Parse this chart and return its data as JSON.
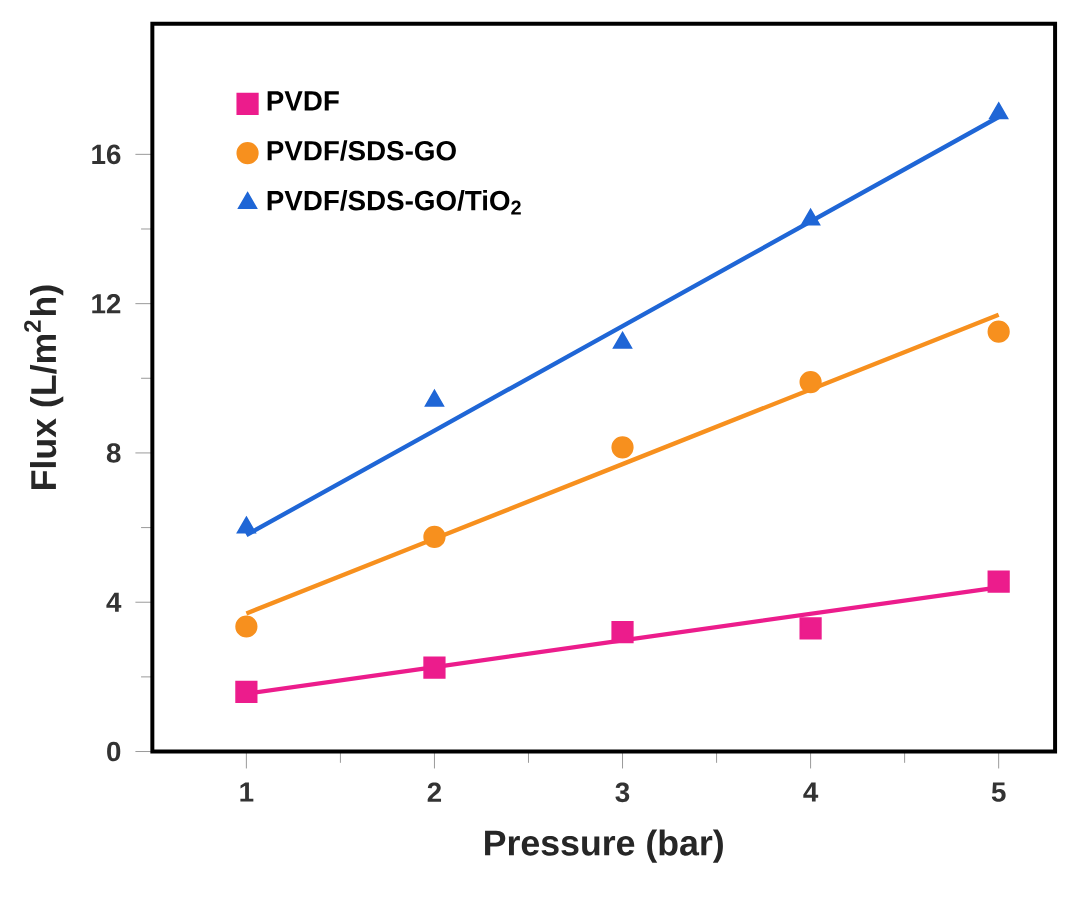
{
  "chart_data": {
    "type": "scatter",
    "xlabel": "Pressure (bar)",
    "ylabel": "Flux (L/m$^{2}$h)",
    "x": [
      1,
      2,
      3,
      4,
      5
    ],
    "xlim": [
      0.5,
      5.3
    ],
    "ylim": [
      0,
      19.5
    ],
    "xticks": [
      1,
      2,
      3,
      4,
      5
    ],
    "yticks": [
      0,
      4,
      8,
      12,
      16
    ],
    "legend": "top left",
    "grid": false,
    "series": [
      {
        "name": "PVDF",
        "color": "#ec1c8c",
        "marker": "square",
        "values": [
          1.6,
          2.25,
          3.2,
          3.3,
          4.55
        ]
      },
      {
        "name": "PVDF/SDS-GO",
        "color": "#f7901e",
        "marker": "circle",
        "values": [
          3.35,
          5.75,
          8.15,
          9.9,
          11.25
        ]
      },
      {
        "name": "PVDF/SDS-GO/TiO$_{2}$",
        "color": "#1f66d6",
        "marker": "triangle",
        "values": [
          6.0,
          9.4,
          10.95,
          14.25,
          17.1
        ]
      },
      {
        "type": "line",
        "color": "#ec1c8c",
        "marker": "none",
        "values": [
          1.55,
          2.26,
          2.98,
          3.69,
          4.4
        ]
      },
      {
        "type": "line",
        "color": "#f7901e",
        "marker": "none",
        "values": [
          3.7,
          5.7,
          7.7,
          9.7,
          11.7
        ]
      },
      {
        "type": "line",
        "color": "#1f66d6",
        "marker": "none",
        "values": [
          5.8,
          8.6,
          11.4,
          14.2,
          17.0
        ]
      }
    ]
  }
}
